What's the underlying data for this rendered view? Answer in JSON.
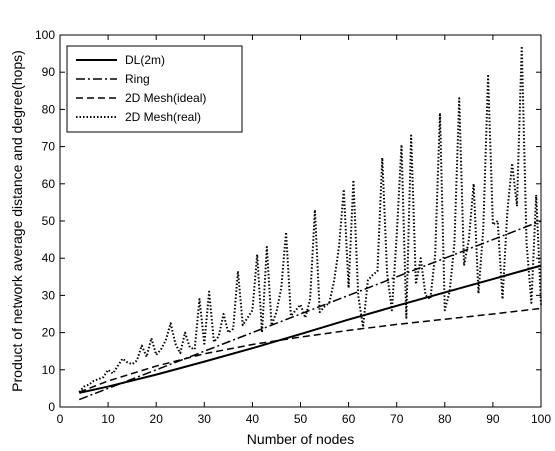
{
  "chart_data": {
    "type": "line",
    "xlabel": "Number of nodes",
    "ylabel": "Product of network average distance and degree(hops)",
    "xlim": [
      0,
      100
    ],
    "ylim": [
      0,
      100
    ],
    "xticks": [
      0,
      10,
      20,
      30,
      40,
      50,
      60,
      70,
      80,
      90,
      100
    ],
    "yticks": [
      0,
      10,
      20,
      30,
      40,
      50,
      60,
      70,
      80,
      90,
      100
    ],
    "legend_position": "top-left",
    "grid": false,
    "series": [
      {
        "name": "DL(2m)",
        "style": "solid",
        "x": [
          4,
          10,
          20,
          30,
          40,
          50,
          60,
          70,
          80,
          90,
          100
        ],
        "y": [
          3.8,
          5.5,
          8.7,
          12.2,
          15.8,
          19.6,
          23.5,
          27.2,
          30.8,
          34.4,
          38.0
        ]
      },
      {
        "name": "Ring",
        "style": "dashdot",
        "x": [
          4,
          10,
          20,
          30,
          40,
          50,
          60,
          70,
          80,
          90,
          100
        ],
        "y": [
          2.0,
          5.0,
          10.0,
          15.0,
          20.0,
          25.0,
          30.0,
          35.0,
          40.0,
          45.0,
          50.0
        ]
      },
      {
        "name": "2D Mesh(ideal)",
        "style": "dashed",
        "x": [
          4,
          10,
          20,
          30,
          40,
          50,
          60,
          70,
          80,
          90,
          100
        ],
        "y": [
          4.0,
          7.0,
          11.0,
          14.3,
          16.8,
          18.8,
          20.6,
          22.2,
          23.6,
          25.0,
          26.5
        ]
      },
      {
        "name": "2D Mesh(real)",
        "style": "dotted",
        "x": [
          4,
          5,
          6,
          7,
          8,
          9,
          10,
          11,
          12,
          13,
          14,
          15,
          16,
          17,
          18,
          19,
          20,
          21,
          22,
          23,
          24,
          25,
          26,
          27,
          28,
          29,
          30,
          31,
          32,
          33,
          34,
          35,
          36,
          37,
          38,
          39,
          40,
          41,
          42,
          43,
          44,
          45,
          46,
          47,
          48,
          49,
          50,
          51,
          52,
          53,
          54,
          55,
          56,
          57,
          58,
          59,
          60,
          61,
          62,
          63,
          64,
          65,
          66,
          67,
          68,
          69,
          70,
          71,
          72,
          73,
          74,
          75,
          76,
          77,
          78,
          79,
          80,
          81,
          82,
          83,
          84,
          85,
          86,
          87,
          88,
          89,
          90,
          91,
          92,
          93,
          94,
          95,
          96,
          97,
          98,
          99,
          100
        ],
        "y": [
          4.0,
          5.5,
          6.0,
          7.0,
          7.5,
          8.0,
          10.0,
          9.0,
          11.0,
          13.0,
          12.0,
          11.5,
          12.5,
          16.5,
          13.5,
          18.5,
          14.0,
          15.5,
          18.0,
          22.5,
          17.0,
          14.5,
          20.0,
          16.0,
          15.5,
          29.0,
          17.0,
          31.0,
          17.5,
          19.0,
          25.0,
          20.0,
          21.0,
          36.5,
          22.0,
          24.0,
          26.0,
          41.0,
          20.0,
          43.0,
          22.0,
          25.5,
          32.0,
          47.0,
          24.5,
          26.0,
          27.5,
          24.0,
          29.0,
          53.0,
          25.5,
          27.0,
          28.0,
          34.0,
          43.0,
          58.5,
          32.0,
          61.0,
          30.0,
          21.5,
          34.0,
          35.5,
          36.5,
          67.0,
          36.0,
          26.0,
          46.0,
          70.5,
          24.0,
          73.0,
          33.0,
          40.0,
          30.0,
          29.0,
          41.0,
          79.0,
          26.0,
          31.0,
          44.0,
          83.0,
          38.0,
          45.0,
          60.0,
          30.5,
          48.0,
          89.0,
          49.0,
          50.0,
          29.0,
          52.5,
          65.5,
          54.0,
          97.0,
          44.0,
          28.0,
          57.0,
          27.5
        ]
      }
    ]
  }
}
